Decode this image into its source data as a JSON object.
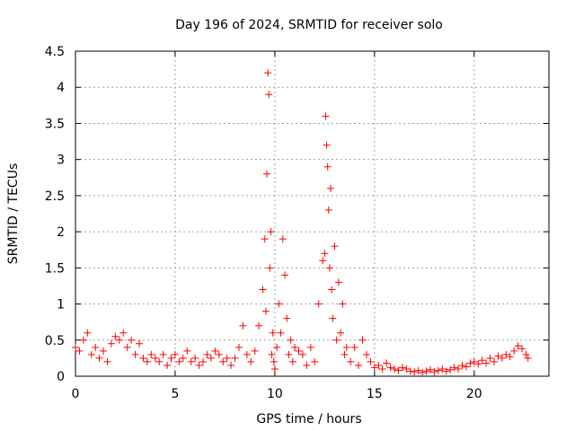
{
  "chart_data": {
    "type": "scatter",
    "title": "Day 196 of 2024, SRMTID for receiver solo",
    "xlabel": "GPS time / hours",
    "ylabel": "SRMTID / TECUs",
    "xlim": [
      0,
      23.75
    ],
    "ylim": [
      0,
      4.5
    ],
    "xticks": [
      0,
      5,
      10,
      15,
      20
    ],
    "xtick_labels": [
      "0",
      "5",
      "10",
      "15",
      "20"
    ],
    "yticks": [
      0,
      0.5,
      1,
      1.5,
      2,
      2.5,
      3,
      3.5,
      4,
      4.5
    ],
    "ytick_labels": [
      "0",
      "0.5",
      "1",
      "1.5",
      "2",
      "2.5",
      "3",
      "3.5",
      "4",
      "4.5"
    ],
    "grid": true,
    "marker": "+",
    "series": [
      {
        "name": "SRMTID",
        "color": "#ff0000",
        "x": [
          0.0,
          0.2,
          0.4,
          0.6,
          0.8,
          1.0,
          1.2,
          1.4,
          1.6,
          1.8,
          2.0,
          2.2,
          2.4,
          2.6,
          2.8,
          3.0,
          3.2,
          3.4,
          3.6,
          3.8,
          4.0,
          4.2,
          4.4,
          4.6,
          4.8,
          5.0,
          5.2,
          5.4,
          5.6,
          5.8,
          6.0,
          6.2,
          6.4,
          6.6,
          6.8,
          7.0,
          7.2,
          7.4,
          7.6,
          7.8,
          8.0,
          8.2,
          8.4,
          8.6,
          8.8,
          9.0,
          9.2,
          9.4,
          9.5,
          9.55,
          9.6,
          9.65,
          9.7,
          9.75,
          9.8,
          9.85,
          9.9,
          9.95,
          10.0,
          10.1,
          10.2,
          10.3,
          10.4,
          10.5,
          10.6,
          10.7,
          10.8,
          10.9,
          11.0,
          11.2,
          11.4,
          11.6,
          11.8,
          12.0,
          12.2,
          12.4,
          12.5,
          12.55,
          12.6,
          12.65,
          12.7,
          12.75,
          12.8,
          12.85,
          12.9,
          13.0,
          13.1,
          13.2,
          13.3,
          13.4,
          13.5,
          13.6,
          13.8,
          14.0,
          14.2,
          14.4,
          14.6,
          14.8,
          15.0,
          15.2,
          15.4,
          15.6,
          15.8,
          16.0,
          16.2,
          16.4,
          16.6,
          16.8,
          17.0,
          17.2,
          17.4,
          17.6,
          17.8,
          18.0,
          18.2,
          18.4,
          18.6,
          18.8,
          19.0,
          19.2,
          19.4,
          19.6,
          19.8,
          20.0,
          20.2,
          20.4,
          20.6,
          20.8,
          21.0,
          21.2,
          21.4,
          21.6,
          21.8,
          22.0,
          22.2,
          22.4,
          22.6,
          22.7
        ],
        "y": [
          0.4,
          0.35,
          0.5,
          0.6,
          0.3,
          0.4,
          0.25,
          0.35,
          0.2,
          0.45,
          0.55,
          0.5,
          0.6,
          0.4,
          0.5,
          0.3,
          0.45,
          0.25,
          0.2,
          0.3,
          0.25,
          0.2,
          0.3,
          0.15,
          0.25,
          0.3,
          0.2,
          0.25,
          0.35,
          0.2,
          0.25,
          0.15,
          0.2,
          0.3,
          0.25,
          0.35,
          0.3,
          0.2,
          0.25,
          0.15,
          0.25,
          0.4,
          0.7,
          0.3,
          0.2,
          0.35,
          0.7,
          1.2,
          1.9,
          0.9,
          2.8,
          4.2,
          3.9,
          1.5,
          2.0,
          0.3,
          0.6,
          0.2,
          0.1,
          0.4,
          1.0,
          0.6,
          1.9,
          1.4,
          0.8,
          0.3,
          0.5,
          0.2,
          0.4,
          0.35,
          0.3,
          0.15,
          0.4,
          0.2,
          1.0,
          1.6,
          1.7,
          3.6,
          3.2,
          2.9,
          2.3,
          1.5,
          2.6,
          1.2,
          0.8,
          1.8,
          0.5,
          1.3,
          0.6,
          1.0,
          0.3,
          0.4,
          0.2,
          0.4,
          0.15,
          0.5,
          0.3,
          0.2,
          0.12,
          0.15,
          0.1,
          0.18,
          0.12,
          0.1,
          0.08,
          0.12,
          0.1,
          0.07,
          0.06,
          0.08,
          0.05,
          0.07,
          0.09,
          0.06,
          0.08,
          0.1,
          0.07,
          0.09,
          0.12,
          0.1,
          0.15,
          0.13,
          0.18,
          0.2,
          0.17,
          0.22,
          0.18,
          0.25,
          0.2,
          0.28,
          0.25,
          0.3,
          0.27,
          0.35,
          0.42,
          0.38,
          0.3,
          0.25
        ]
      }
    ]
  }
}
